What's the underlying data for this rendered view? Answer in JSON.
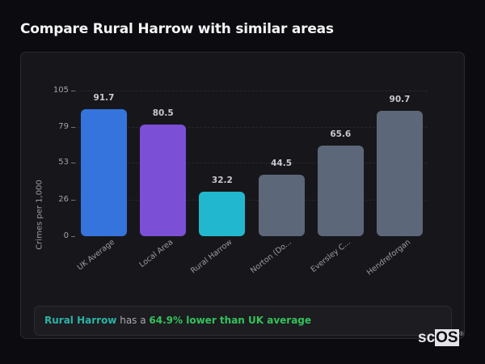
{
  "page": {
    "title": "Compare Rural Harrow with similar areas"
  },
  "chart_data": {
    "type": "bar",
    "title": "Compare Rural Harrow with similar areas",
    "xlabel": "",
    "ylabel": "Crimes per 1,000",
    "ylim": [
      0,
      105
    ],
    "yticks": [
      0,
      26,
      53,
      79,
      105
    ],
    "grid": true,
    "categories": [
      "UK Average",
      "Local Area",
      "Rural Harrow",
      "Norton (Do...",
      "Eversley C...",
      "Hendreforgan"
    ],
    "values": [
      91.7,
      80.5,
      32.2,
      44.5,
      65.6,
      90.7
    ],
    "value_labels": [
      "91.7",
      "80.5",
      "32.2",
      "44.5",
      "65.6",
      "90.7"
    ],
    "colors": [
      "#3574dc",
      "#7b4fd6",
      "#21b8cf",
      "#5c6779",
      "#5c6779",
      "#5c6779"
    ],
    "legend": null
  },
  "summary": {
    "area_name": "Rural Harrow",
    "connector": " has a ",
    "statement": "64.9% lower than UK average",
    "area_color": "#2ab3a6",
    "statement_color": "#34c25a"
  },
  "watermark": {
    "prefix": "sc",
    "highlight": "OS",
    "mark": "®"
  }
}
